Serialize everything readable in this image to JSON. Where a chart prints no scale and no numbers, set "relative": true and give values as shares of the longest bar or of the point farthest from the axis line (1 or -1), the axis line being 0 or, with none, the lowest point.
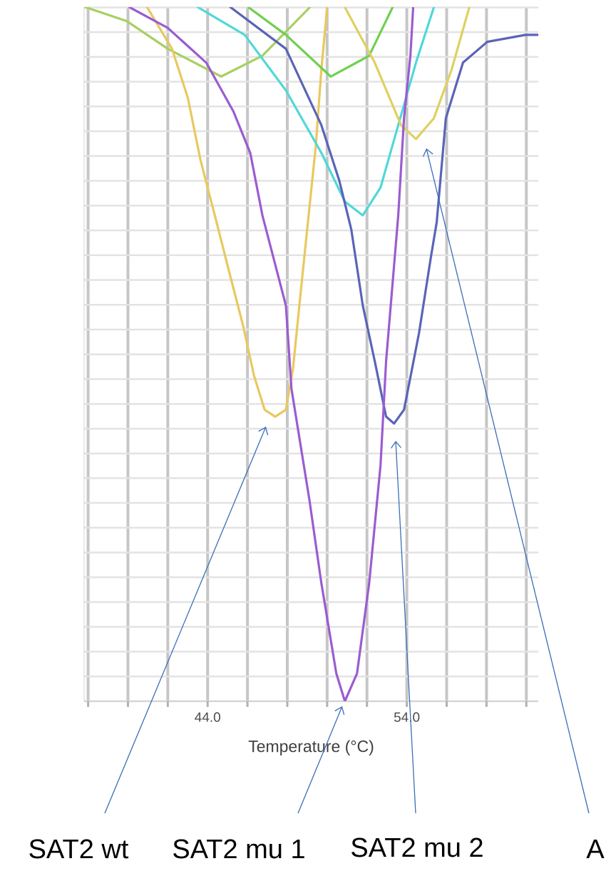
{
  "chart_data": {
    "type": "line",
    "relative": true,
    "xlabel": "Temperature (°C)",
    "xlim": [
      37.8,
      60.6
    ],
    "xticks": [
      {
        "value": 38,
        "label": null
      },
      {
        "value": 40,
        "label": null
      },
      {
        "value": 42,
        "label": null
      },
      {
        "value": 44,
        "label": "44.0"
      },
      {
        "value": 46,
        "label": null
      },
      {
        "value": 48,
        "label": null
      },
      {
        "value": 50,
        "label": null
      },
      {
        "value": 52,
        "label": null
      },
      {
        "value": 54,
        "label": "54.0"
      },
      {
        "value": 56,
        "label": null
      },
      {
        "value": 58,
        "label": null
      },
      {
        "value": 60,
        "label": null
      }
    ],
    "grid": true,
    "line_style": "solid",
    "series": [
      {
        "color": "#a8d060",
        "x": [
          37.86,
          39.93,
          42.0,
          44.68,
          46.75,
          49.14
        ],
        "values": [
          1.0,
          0.98,
          0.94,
          0.9,
          0.93,
          1.0
        ]
      },
      {
        "color": "#e8c860",
        "x": [
          40.96,
          42.21,
          43.0,
          43.64,
          44.36,
          45.07,
          45.79,
          46.32,
          46.86,
          47.39,
          47.93,
          48.29,
          48.64,
          49.07,
          49.43,
          49.71,
          50.0
        ],
        "values": [
          1.0,
          0.94,
          0.87,
          0.78,
          0.7,
          0.62,
          0.54,
          0.47,
          0.42,
          0.41,
          0.42,
          0.48,
          0.58,
          0.7,
          0.8,
          0.91,
          1.0
        ]
      },
      {
        "color": "#50d8d8",
        "x": [
          43.5,
          45.86,
          47.93,
          49.71,
          50.89,
          51.79,
          52.68,
          53.57,
          54.46,
          55.36
        ],
        "values": [
          1.0,
          0.96,
          0.88,
          0.79,
          0.72,
          0.7,
          0.74,
          0.83,
          0.92,
          1.0
        ]
      },
      {
        "color": "#70d050",
        "x": [
          46.04,
          47.93,
          50.18,
          52.11,
          53.29
        ],
        "values": [
          1.0,
          0.96,
          0.9,
          0.93,
          1.0
        ]
      },
      {
        "color": "#e0d060",
        "x": [
          50.89,
          52.39,
          53.71,
          54.46,
          55.36,
          56.25,
          57.14
        ],
        "values": [
          1.0,
          0.92,
          0.83,
          0.81,
          0.84,
          0.91,
          1.0
        ]
      },
      {
        "color": "#5a64b8",
        "x": [
          45.14,
          47.93,
          49.71,
          50.61,
          51.21,
          51.79,
          52.39,
          52.96,
          53.36,
          53.86,
          54.61,
          55.21,
          55.5,
          55.96,
          56.82,
          58.04,
          59.96,
          60.6
        ],
        "values": [
          1.0,
          0.94,
          0.83,
          0.75,
          0.68,
          0.57,
          0.49,
          0.41,
          0.4,
          0.42,
          0.53,
          0.64,
          0.69,
          0.84,
          0.92,
          0.95,
          0.96,
          0.96
        ]
      },
      {
        "color": "#9b5cd0",
        "x": [
          40.07,
          42.0,
          43.93,
          45.29,
          46.14,
          46.75,
          47.93,
          48.21,
          49.11,
          49.71,
          50.46,
          50.89,
          51.5,
          52.11,
          52.68,
          52.96,
          53.57,
          53.86,
          54.18,
          54.32
        ],
        "values": [
          1.0,
          0.97,
          0.92,
          0.85,
          0.79,
          0.7,
          0.57,
          0.45,
          0.29,
          0.17,
          0.04,
          0.0,
          0.04,
          0.17,
          0.34,
          0.49,
          0.7,
          0.84,
          0.93,
          1.0
        ]
      }
    ],
    "annotations": [
      "SAT2 wt",
      "SAT2 mu 1",
      "SAT2 mu 2",
      "A"
    ]
  }
}
